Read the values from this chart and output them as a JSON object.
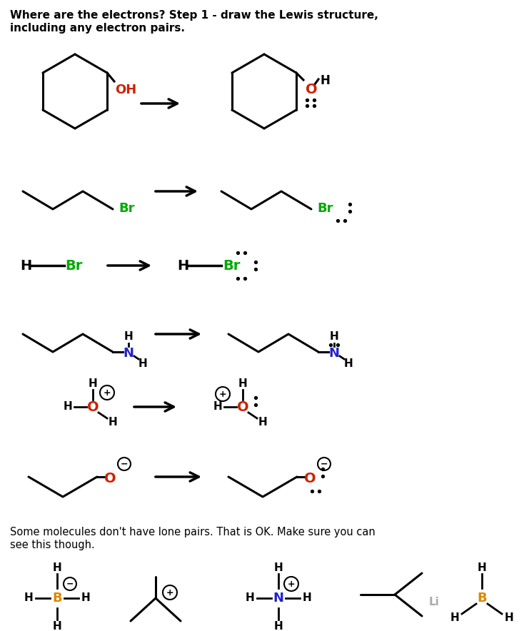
{
  "title_line1": "Where are the electrons? Step 1 - draw the Lewis structure,",
  "title_line2": "including any electron pairs.",
  "bottom_text_line1": "Some molecules don't have lone pairs. That is OK. Make sure you can",
  "bottom_text_line2": "see this though.",
  "bg_color": "#ffffff",
  "text_color": "#000000",
  "red": "#cc2200",
  "green": "#00aa00",
  "blue": "#2222cc",
  "orange": "#dd8800",
  "gray": "#aaaaaa"
}
